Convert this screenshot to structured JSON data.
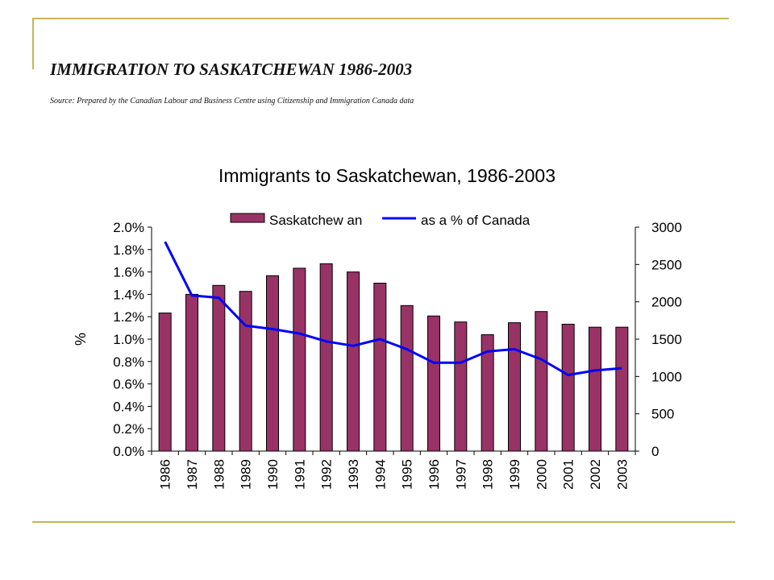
{
  "slide": {
    "title": "IMMIGRATION TO SASKATCHEWAN 1986-2003",
    "subtitle": "Source: Prepared by the Canadian Labour and Business Centre using Citizenship  and Immigration Canada data"
  },
  "chart_data": {
    "type": "bar",
    "title": "Immigrants to Saskatchewan, 1986-2003",
    "ylabel": "%",
    "categories": [
      "1986",
      "1987",
      "1988",
      "1989",
      "1990",
      "1991",
      "1992",
      "1993",
      "1994",
      "1995",
      "1996",
      "1997",
      "1998",
      "1999",
      "2000",
      "2001",
      "2002",
      "2003"
    ],
    "series": [
      {
        "name": "Saskatchew an",
        "type": "bar",
        "axis": "right",
        "color": "#993366",
        "values": [
          1850,
          2100,
          2220,
          2140,
          2350,
          2450,
          2510,
          2400,
          2250,
          1950,
          1810,
          1730,
          1560,
          1720,
          1870,
          1700,
          1660,
          1660
        ]
      },
      {
        "name": "as a % of Canada",
        "type": "line",
        "axis": "left",
        "color": "#0000ff",
        "values": [
          1.87,
          1.39,
          1.37,
          1.12,
          1.09,
          1.05,
          0.98,
          0.94,
          1.0,
          0.91,
          0.79,
          0.79,
          0.89,
          0.91,
          0.82,
          0.68,
          0.72,
          0.74
        ]
      }
    ],
    "y_left": {
      "min": 0,
      "max": 2.0,
      "ticks": [
        "0.0%",
        "0.2%",
        "0.4%",
        "0.6%",
        "0.8%",
        "1.0%",
        "1.2%",
        "1.4%",
        "1.6%",
        "1.8%",
        "2.0%"
      ]
    },
    "y_right": {
      "min": 0,
      "max": 3000,
      "ticks": [
        "0",
        "500",
        "1000",
        "1500",
        "2000",
        "2500",
        "3000"
      ]
    },
    "legend_placement": "top-center",
    "grid": false
  }
}
